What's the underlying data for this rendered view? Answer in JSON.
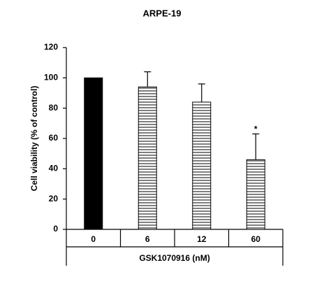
{
  "chart_data": {
    "type": "bar",
    "title": "ARPE-19",
    "x_label": "GSK1070916 (nM)",
    "y_label": "Cell viability (% of control)",
    "categories": [
      "0",
      "6",
      "12",
      "60"
    ],
    "values": [
      100,
      94,
      84,
      46
    ],
    "errors": [
      null,
      10,
      12,
      17
    ],
    "value_annotations": [
      null,
      null,
      null,
      "*"
    ],
    "colors": [
      "#000000",
      "#ffffff",
      "#ffffff",
      "#ffffff"
    ],
    "hatched": [
      false,
      true,
      true,
      true
    ],
    "ylim": [
      0,
      120
    ],
    "yticks": [
      0,
      20,
      40,
      60,
      80,
      100,
      120
    ],
    "grid": false
  }
}
